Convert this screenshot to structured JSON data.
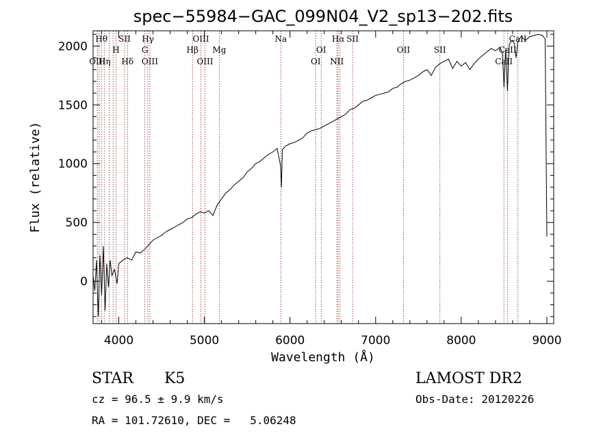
{
  "chart_data": {
    "type": "line",
    "title": "spec−55984−GAC_099N04_V2_sp13−202.fits",
    "xlabel": "Wavelength (Å)",
    "ylabel": "Flux (relative)",
    "xlim": [
      3700,
      9080
    ],
    "ylim": [
      -360,
      2130
    ],
    "xticks": [
      4000,
      5000,
      6000,
      7000,
      8000,
      9000
    ],
    "yticks": [
      0,
      500,
      1000,
      1500,
      2000
    ],
    "grid": false,
    "legend": "none",
    "series": [
      {
        "color": "#000000",
        "x": [
          3700,
          3720,
          3740,
          3760,
          3780,
          3800,
          3820,
          3840,
          3860,
          3880,
          3900,
          3920,
          3950,
          3980,
          4000,
          4050,
          4100,
          4150,
          4200,
          4250,
          4300,
          4350,
          4400,
          4450,
          4500,
          4550,
          4600,
          4650,
          4700,
          4750,
          4800,
          4850,
          4900,
          4950,
          5000,
          5050,
          5100,
          5150,
          5200,
          5250,
          5300,
          5350,
          5400,
          5450,
          5500,
          5550,
          5600,
          5650,
          5700,
          5750,
          5800,
          5850,
          5890,
          5900,
          5910,
          5950,
          6000,
          6050,
          6100,
          6150,
          6200,
          6250,
          6300,
          6350,
          6400,
          6450,
          6500,
          6550,
          6600,
          6650,
          6700,
          6750,
          6800,
          6850,
          6900,
          6950,
          7000,
          7050,
          7100,
          7150,
          7200,
          7250,
          7300,
          7350,
          7400,
          7450,
          7500,
          7550,
          7600,
          7650,
          7700,
          7750,
          7800,
          7850,
          7900,
          7950,
          8000,
          8050,
          8100,
          8150,
          8200,
          8250,
          8300,
          8350,
          8400,
          8450,
          8480,
          8500,
          8520,
          8540,
          8560,
          8580,
          8600,
          8620,
          8640,
          8660,
          8680,
          8700,
          8750,
          8800,
          8850,
          8900,
          8950,
          8980,
          9000
        ],
        "values": [
          50,
          -80,
          180,
          -300,
          220,
          -120,
          300,
          -250,
          150,
          -50,
          180,
          50,
          100,
          -20,
          150,
          180,
          200,
          180,
          250,
          240,
          270,
          310,
          350,
          370,
          390,
          420,
          440,
          460,
          480,
          500,
          530,
          540,
          570,
          590,
          580,
          600,
          560,
          650,
          700,
          750,
          780,
          820,
          850,
          880,
          930,
          960,
          1000,
          1020,
          1050,
          1080,
          1100,
          1130,
          980,
          800,
          1120,
          1150,
          1170,
          1180,
          1200,
          1220,
          1260,
          1280,
          1290,
          1300,
          1320,
          1340,
          1360,
          1380,
          1400,
          1420,
          1460,
          1470,
          1500,
          1530,
          1540,
          1560,
          1580,
          1590,
          1600,
          1610,
          1640,
          1650,
          1680,
          1700,
          1710,
          1730,
          1750,
          1780,
          1800,
          1750,
          1820,
          1850,
          1870,
          1890,
          1810,
          1870,
          1830,
          1860,
          1800,
          1850,
          1890,
          1920,
          1950,
          1980,
          1960,
          1990,
          1950,
          1650,
          1980,
          1620,
          2010,
          2040,
          2050,
          2020,
          1900,
          2030,
          2060,
          2080,
          2050,
          2080,
          2090,
          2100,
          2090,
          2060,
          380
        ]
      }
    ],
    "lines": [
      {
        "wl": 3750,
        "label": "OIII",
        "row": 2
      },
      {
        "wl": 3771,
        "label": "",
        "row": 0
      },
      {
        "wl": 3798,
        "label": "Hθ",
        "row": 0
      },
      {
        "wl": 3835,
        "label": "Hη",
        "row": 2
      },
      {
        "wl": 3889,
        "label": "",
        "row": 0
      },
      {
        "wl": 3933,
        "label": "",
        "row": 0
      },
      {
        "wl": 3968,
        "label": "H",
        "row": 1
      },
      {
        "wl": 4068,
        "label": "SII",
        "row": 0
      },
      {
        "wl": 4102,
        "label": "Hδ",
        "row": 2
      },
      {
        "wl": 4305,
        "label": "G",
        "row": 1
      },
      {
        "wl": 4340,
        "label": "Hγ",
        "row": 0
      },
      {
        "wl": 4363,
        "label": "OIII",
        "row": 2
      },
      {
        "wl": 4861,
        "label": "Hβ",
        "row": 1
      },
      {
        "wl": 4959,
        "label": "OIII",
        "row": 0
      },
      {
        "wl": 5007,
        "label": "OIII",
        "row": 2
      },
      {
        "wl": 5175,
        "label": "Mg",
        "row": 1
      },
      {
        "wl": 5893,
        "label": "Na",
        "row": 0
      },
      {
        "wl": 6300,
        "label": "OI",
        "row": 2
      },
      {
        "wl": 6364,
        "label": "OI",
        "row": 1
      },
      {
        "wl": 6548,
        "label": "NII",
        "row": 2
      },
      {
        "wl": 6563,
        "label": "Hα",
        "row": 0
      },
      {
        "wl": 6584,
        "label": "",
        "row": 0
      },
      {
        "wl": 6731,
        "label": "SII",
        "row": 0
      },
      {
        "wl": 7325,
        "label": "OII",
        "row": 1
      },
      {
        "wl": 7751,
        "label": "SII",
        "row": 1
      },
      {
        "wl": 8498,
        "label": "CaII",
        "row": 2
      },
      {
        "wl": 8542,
        "label": "CaII",
        "row": 1
      },
      {
        "wl": 8662,
        "label": "CaII",
        "row": 0
      }
    ]
  },
  "info": {
    "class": "STAR",
    "subclass": "K5",
    "survey": "LAMOST DR2",
    "cz": "cz = 96.5 ± 9.9 km/s",
    "obsdate": "Obs-Date: 20120226",
    "radec": "RA = 101.72610, DEC =   5.06248"
  }
}
